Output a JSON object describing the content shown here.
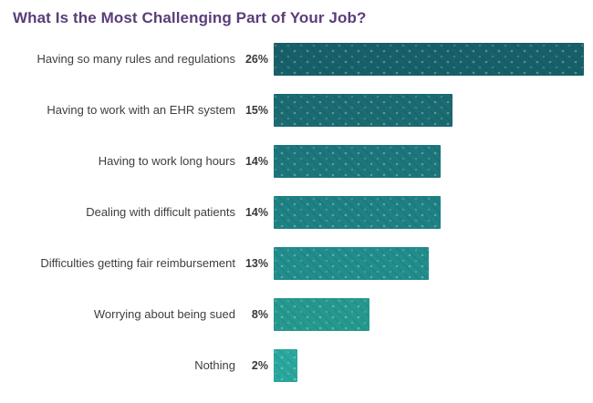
{
  "page": {
    "background": "#ffffff"
  },
  "chart_data": {
    "type": "bar",
    "orientation": "horizontal",
    "title": "What Is the Most Challenging Part of Your Job?",
    "title_color": "#5a3d7a",
    "categories": [
      "Having so many rules and regulations",
      "Having to work with an EHR system",
      "Having to work long hours",
      "Dealing with difficult patients",
      "Difficulties getting fair reimbursement",
      "Worrying about being sued",
      "Nothing"
    ],
    "values": [
      26,
      15,
      14,
      14,
      13,
      8,
      2
    ],
    "value_labels": [
      "26%",
      "15%",
      "14%",
      "14%",
      "13%",
      "8%",
      "2%"
    ],
    "bar_colors": [
      "#17606a",
      "#1a6b72",
      "#1c767b",
      "#1e8184",
      "#218d8c",
      "#26998f",
      "#2aa79e"
    ],
    "xlim": [
      0,
      26
    ],
    "bar_texture": "light-dot-diagonal",
    "grid": false,
    "legend": false,
    "xlabel": "",
    "ylabel": ""
  }
}
